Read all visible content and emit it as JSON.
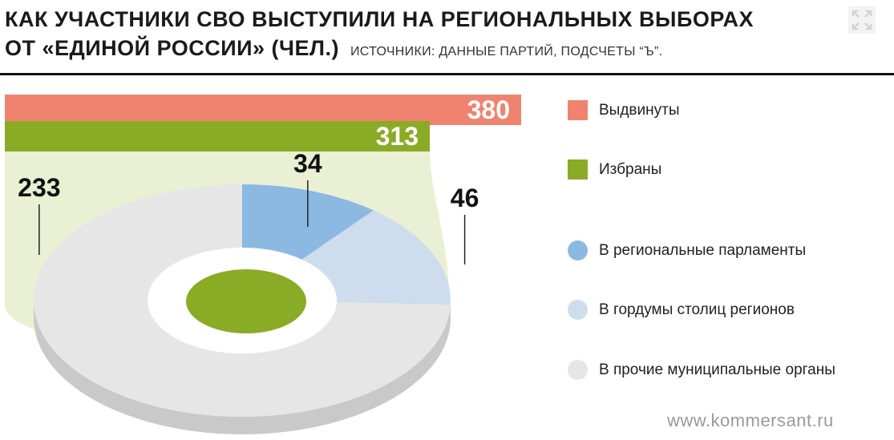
{
  "header": {
    "title_line1": "КАК УЧАСТНИКИ СВО ВЫСТУПИЛИ НА РЕГИОНАЛЬНЫХ ВЫБОРАХ",
    "title_line2": "ОТ «ЕДИНОЙ РОССИИ» (ЧЕЛ.)",
    "source": "ИСТОЧНИКИ: ДАННЫЕ ПАРТИЙ, ПОДСЧЕТЫ “Ъ”."
  },
  "colors": {
    "nominated": "#f0836f",
    "elected": "#8aab25",
    "elected_fill": "#e9f0d3",
    "regional_parliaments": "#8bb9e2",
    "city_councils": "#cddded",
    "other_municipal": "#e6e6e6",
    "other_municipal_side": "#c9c9c9"
  },
  "icons": {
    "expand": "expand-icon"
  },
  "chart_data": [
    {
      "type": "bar",
      "categories": [
        "Выдвинуты",
        "Избраны"
      ],
      "values": [
        380,
        313
      ]
    },
    {
      "type": "pie",
      "labels": [
        "В региональные парламенты",
        "В гордумы столиц регионов",
        "В прочие муниципальные органы"
      ],
      "values": [
        34,
        46,
        233
      ],
      "total": 313
    }
  ],
  "legend": [
    {
      "label": "Выдвинуты",
      "shape": "square",
      "color": "#f0836f"
    },
    {
      "label": "Избраны",
      "shape": "square",
      "color": "#8aab25"
    },
    {
      "label": "В региональные парламенты",
      "shape": "circle",
      "color": "#8bb9e2"
    },
    {
      "label": "В гордумы столиц регионов",
      "shape": "circle",
      "color": "#cddded"
    },
    {
      "label": "В прочие муниципальные органы",
      "shape": "circle",
      "color": "#e6e6e6"
    }
  ],
  "footer": {
    "watermark": "www.kommersant.ru"
  }
}
